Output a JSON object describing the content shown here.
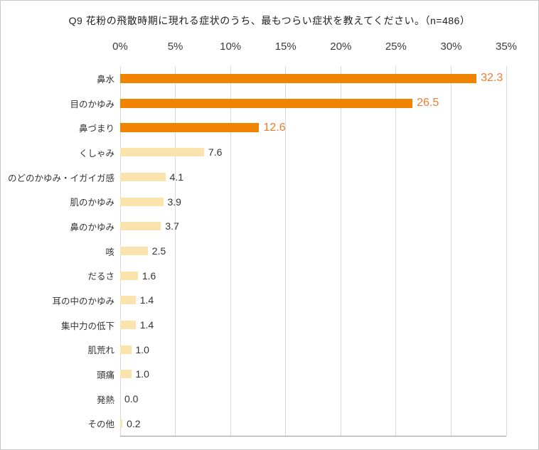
{
  "chart_data": {
    "type": "bar",
    "orientation": "horizontal",
    "title": "Q9 花粉の飛散時期に現れる症状のうち、最もつらい症状を教えてください。（n=486）",
    "categories": [
      "鼻水",
      "目のかゆみ",
      "鼻づまり",
      "くしゃみ",
      "のどのかゆみ・イガイガ感",
      "肌のかゆみ",
      "鼻のかゆみ",
      "咳",
      "だるさ",
      "耳の中のかゆみ",
      "集中力の低下",
      "肌荒れ",
      "頭痛",
      "発熱",
      "その他"
    ],
    "values": [
      32.3,
      26.5,
      12.6,
      7.6,
      4.1,
      3.9,
      3.7,
      2.5,
      1.6,
      1.4,
      1.4,
      1.0,
      1.0,
      0.0,
      0.2
    ],
    "value_labels": [
      "32.3",
      "26.5",
      "12.6",
      "7.6",
      "4.1",
      "3.9",
      "3.7",
      "2.5",
      "1.6",
      "1.4",
      "1.4",
      "1.0",
      "1.0",
      "0.0",
      "0.2"
    ],
    "highlight_count": 3,
    "xlabel": "",
    "ylabel": "",
    "xlim": [
      0,
      35
    ],
    "x_ticks": [
      "0%",
      "5%",
      "10%",
      "15%",
      "20%",
      "25%",
      "30%",
      "35%"
    ],
    "grid": "vertical-on",
    "legend": "none",
    "colors": {
      "highlight_bar": "#f08300",
      "highlight_text": "#ed7d31",
      "regular_bar": "#fbe3ae",
      "gridline": "#d9d9d9",
      "axis_line": "#9a9a9a"
    }
  }
}
